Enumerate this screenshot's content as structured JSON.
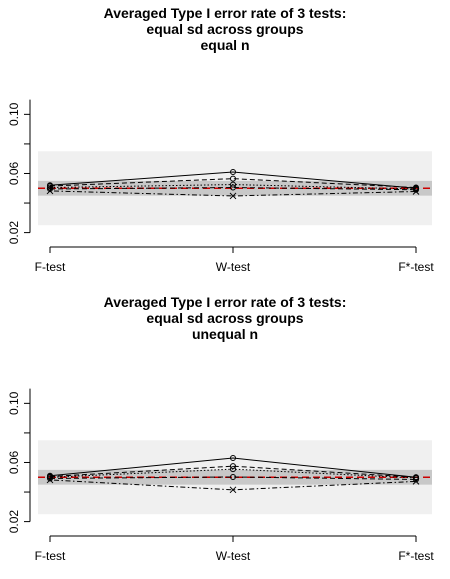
{
  "chart_data": [
    {
      "type": "line",
      "title": [
        "Averaged Type I error rate of 3 tests:",
        "equal sd across groups",
        "equal n"
      ],
      "categories": [
        "F-test",
        "W-test",
        "F*-test"
      ],
      "y_ticks": [
        "0.02",
        "0.06",
        "0.10"
      ],
      "ylim": [
        0.015,
        0.13
      ],
      "reference_line": {
        "value": 0.05,
        "color": "#cc0000",
        "style": "dashed"
      },
      "bands": [
        {
          "lower": 0.025,
          "upper": 0.075,
          "color": "#f0f0f0"
        },
        {
          "lower": 0.045,
          "upper": 0.055,
          "color": "#c8c8c8"
        }
      ],
      "series": [
        {
          "values": [
            0.052,
            0.061,
            0.05
          ],
          "line_style": "solid",
          "marker": "circle"
        },
        {
          "values": [
            0.0515,
            0.0565,
            0.0505
          ],
          "line_style": "dashed",
          "marker": "circle"
        },
        {
          "values": [
            0.0505,
            0.0525,
            0.0495
          ],
          "line_style": "dotted",
          "marker": "circle"
        },
        {
          "values": [
            0.0495,
            0.0505,
            0.049
          ],
          "line_style": "dashed",
          "marker": "circle"
        },
        {
          "values": [
            0.0482,
            0.0448,
            0.0478
          ],
          "line_style": "dotdash",
          "marker": "cross"
        }
      ]
    },
    {
      "type": "line",
      "title": [
        "Averaged Type I error rate of 3 tests:",
        "equal sd across groups",
        "unequal n"
      ],
      "categories": [
        "F-test",
        "W-test",
        "F*-test"
      ],
      "y_ticks": [
        "0.02",
        "0.06",
        "0.10"
      ],
      "ylim": [
        0.015,
        0.13
      ],
      "reference_line": {
        "value": 0.05,
        "color": "#cc0000",
        "style": "dashed"
      },
      "bands": [
        {
          "lower": 0.025,
          "upper": 0.075,
          "color": "#f0f0f0"
        },
        {
          "lower": 0.045,
          "upper": 0.055,
          "color": "#c8c8c8"
        }
      ],
      "series": [
        {
          "values": [
            0.051,
            0.063,
            0.05
          ],
          "line_style": "solid",
          "marker": "circle"
        },
        {
          "values": [
            0.0505,
            0.0575,
            0.05
          ],
          "line_style": "dashed",
          "marker": "circle"
        },
        {
          "values": [
            0.05,
            0.0555,
            0.0495
          ],
          "line_style": "dotted",
          "marker": "circle"
        },
        {
          "values": [
            0.0492,
            0.0502,
            0.0485
          ],
          "line_style": "dashed",
          "marker": "circle"
        },
        {
          "values": [
            0.0482,
            0.0415,
            0.0472
          ],
          "line_style": "dotdash",
          "marker": "cross"
        }
      ]
    }
  ]
}
